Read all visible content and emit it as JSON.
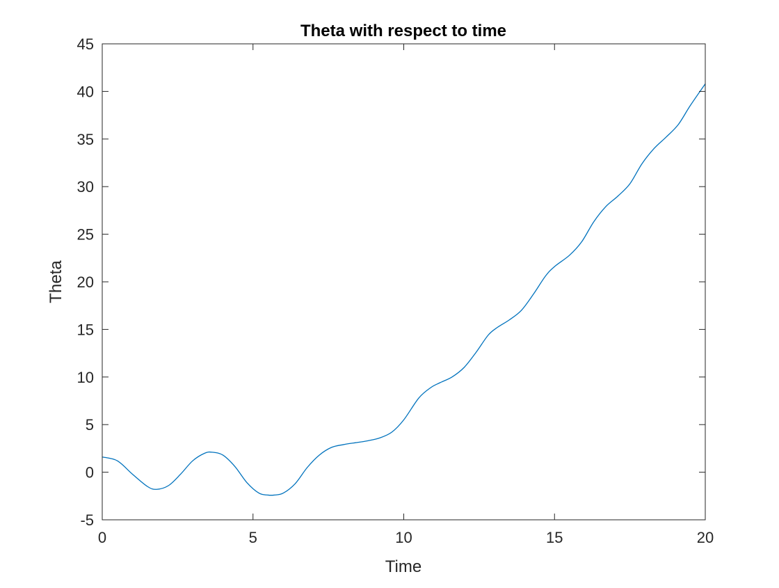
{
  "chart_data": {
    "type": "line",
    "title": "Theta with respect to time",
    "xlabel": "Time",
    "ylabel": "Theta",
    "xlim": [
      0,
      20
    ],
    "ylim": [
      -5,
      45
    ],
    "xticks": [
      0,
      5,
      10,
      15,
      20
    ],
    "yticks": [
      -5,
      0,
      5,
      10,
      15,
      20,
      25,
      30,
      35,
      40,
      45
    ],
    "grid": false,
    "legend": "none",
    "series": [
      {
        "color": "#0072BD",
        "x": [
          0,
          0.5,
          1.0,
          1.5,
          1.8,
          2.2,
          2.6,
          3.0,
          3.4,
          3.65,
          4.0,
          4.4,
          4.8,
          5.2,
          5.5,
          5.7,
          6.0,
          6.4,
          6.8,
          7.2,
          7.6,
          8.0,
          8.4,
          8.8,
          9.2,
          9.6,
          10.0,
          10.5,
          10.9,
          11.2,
          11.6,
          12.0,
          12.4,
          12.8,
          13.1,
          13.5,
          13.9,
          14.3,
          14.7,
          15.0,
          15.5,
          15.9,
          16.3,
          16.7,
          17.1,
          17.5,
          17.9,
          18.3,
          18.7,
          19.1,
          19.5,
          20.0
        ],
        "y": [
          1.6,
          1.2,
          -0.2,
          -1.5,
          -1.8,
          -1.4,
          -0.2,
          1.2,
          2.0,
          2.1,
          1.8,
          0.6,
          -1.1,
          -2.2,
          -2.4,
          -2.4,
          -2.2,
          -1.2,
          0.5,
          1.8,
          2.6,
          2.9,
          3.1,
          3.3,
          3.6,
          4.2,
          5.5,
          7.8,
          8.9,
          9.4,
          10.0,
          11.0,
          12.6,
          14.4,
          15.2,
          16.0,
          17.0,
          18.7,
          20.6,
          21.6,
          22.8,
          24.2,
          26.3,
          27.9,
          29.0,
          30.3,
          32.4,
          34.0,
          35.2,
          36.5,
          38.5,
          40.8
        ]
      }
    ]
  }
}
